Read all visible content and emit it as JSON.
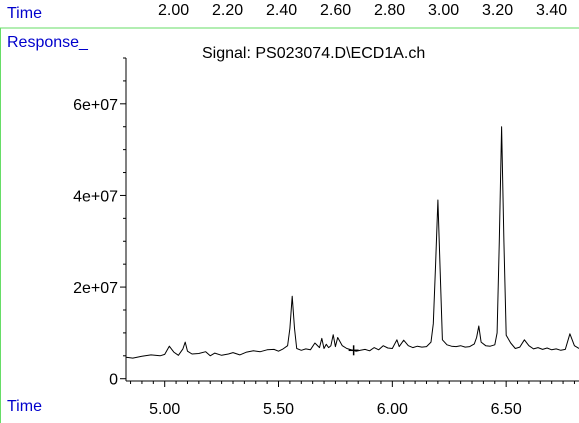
{
  "header": {
    "time_label": "Time",
    "response_label": "Response_",
    "time_scale": [
      "2.00",
      "2.20",
      "2.40",
      "2.60",
      "2.80",
      "3.00",
      "3.20",
      "3.40"
    ]
  },
  "footer": {
    "time_label": "Time"
  },
  "colors": {
    "axis_label": "#0000cc",
    "frame_line": "#66dd66",
    "trace": "#000000"
  },
  "chart_data": {
    "type": "line",
    "title": "Signal: PS023074.D\\ECD1A.ch",
    "xlabel": "",
    "ylabel": "",
    "xlim": [
      4.83,
      6.82
    ],
    "ylim": [
      -500000,
      70000000
    ],
    "x_ticks": [
      5.0,
      5.5,
      6.0,
      6.5
    ],
    "x_tick_labels": [
      "5.00",
      "5.50",
      "6.00",
      "6.50"
    ],
    "y_ticks": [
      0,
      20000000,
      40000000,
      60000000
    ],
    "y_tick_labels": [
      "0",
      "2e+07",
      "4e+07",
      "6e+07"
    ],
    "grid": false,
    "legend": "none",
    "cursor_marker": {
      "x": 5.83,
      "y": 6200000
    },
    "series": [
      {
        "x": [
          4.83,
          4.86,
          4.9,
          4.94,
          4.98,
          5.0,
          5.02,
          5.04,
          5.06,
          5.08,
          5.09,
          5.1,
          5.12,
          5.15,
          5.18,
          5.2,
          5.22,
          5.25,
          5.28,
          5.3,
          5.33,
          5.36,
          5.39,
          5.42,
          5.45,
          5.48,
          5.5,
          5.52,
          5.54,
          5.55,
          5.56,
          5.57,
          5.58,
          5.6,
          5.62,
          5.64,
          5.66,
          5.68,
          5.69,
          5.7,
          5.71,
          5.72,
          5.73,
          5.74,
          5.75,
          5.76,
          5.78,
          5.8,
          5.82,
          5.84,
          5.86,
          5.88,
          5.9,
          5.92,
          5.94,
          5.96,
          5.98,
          6.0,
          6.02,
          6.03,
          6.05,
          6.07,
          6.09,
          6.11,
          6.13,
          6.15,
          6.17,
          6.18,
          6.19,
          6.2,
          6.21,
          6.22,
          6.24,
          6.26,
          6.28,
          6.3,
          6.32,
          6.34,
          6.36,
          6.37,
          6.38,
          6.39,
          6.41,
          6.43,
          6.45,
          6.46,
          6.47,
          6.48,
          6.49,
          6.5,
          6.52,
          6.54,
          6.56,
          6.58,
          6.6,
          6.62,
          6.64,
          6.66,
          6.68,
          6.7,
          6.72,
          6.74,
          6.76,
          6.78,
          6.8,
          6.82
        ],
        "y": [
          4700000,
          4500000,
          4900000,
          5200000,
          5000000,
          5300000,
          7100000,
          5800000,
          5100000,
          6500000,
          8000000,
          6000000,
          5400000,
          5500000,
          5900000,
          5000000,
          5600000,
          5100000,
          5400000,
          5700000,
          5200000,
          5800000,
          6100000,
          5900000,
          6300000,
          6400000,
          6000000,
          6500000,
          7200000,
          11000000,
          18000000,
          11000000,
          6600000,
          6200000,
          6500000,
          6300000,
          7800000,
          6800000,
          8800000,
          6600000,
          7500000,
          6800000,
          7200000,
          9600000,
          7000000,
          9000000,
          7200000,
          6600000,
          6300000,
          6000000,
          6200000,
          6400000,
          6100000,
          6800000,
          6300000,
          7200000,
          6700000,
          6600000,
          8500000,
          7000000,
          8400000,
          7200000,
          6800000,
          7100000,
          6900000,
          7000000,
          8000000,
          12000000,
          25000000,
          39000000,
          24000000,
          8500000,
          7400000,
          7100000,
          7000000,
          7200000,
          6900000,
          7000000,
          7600000,
          9000000,
          11500000,
          8000000,
          7200000,
          7100000,
          7400000,
          10000000,
          30000000,
          55000000,
          30000000,
          9500000,
          7800000,
          6600000,
          6900000,
          8500000,
          7200000,
          6500000,
          6800000,
          6400000,
          6700000,
          6300000,
          6500000,
          6200000,
          6400000,
          9800000,
          7200000,
          6600000
        ]
      }
    ]
  }
}
